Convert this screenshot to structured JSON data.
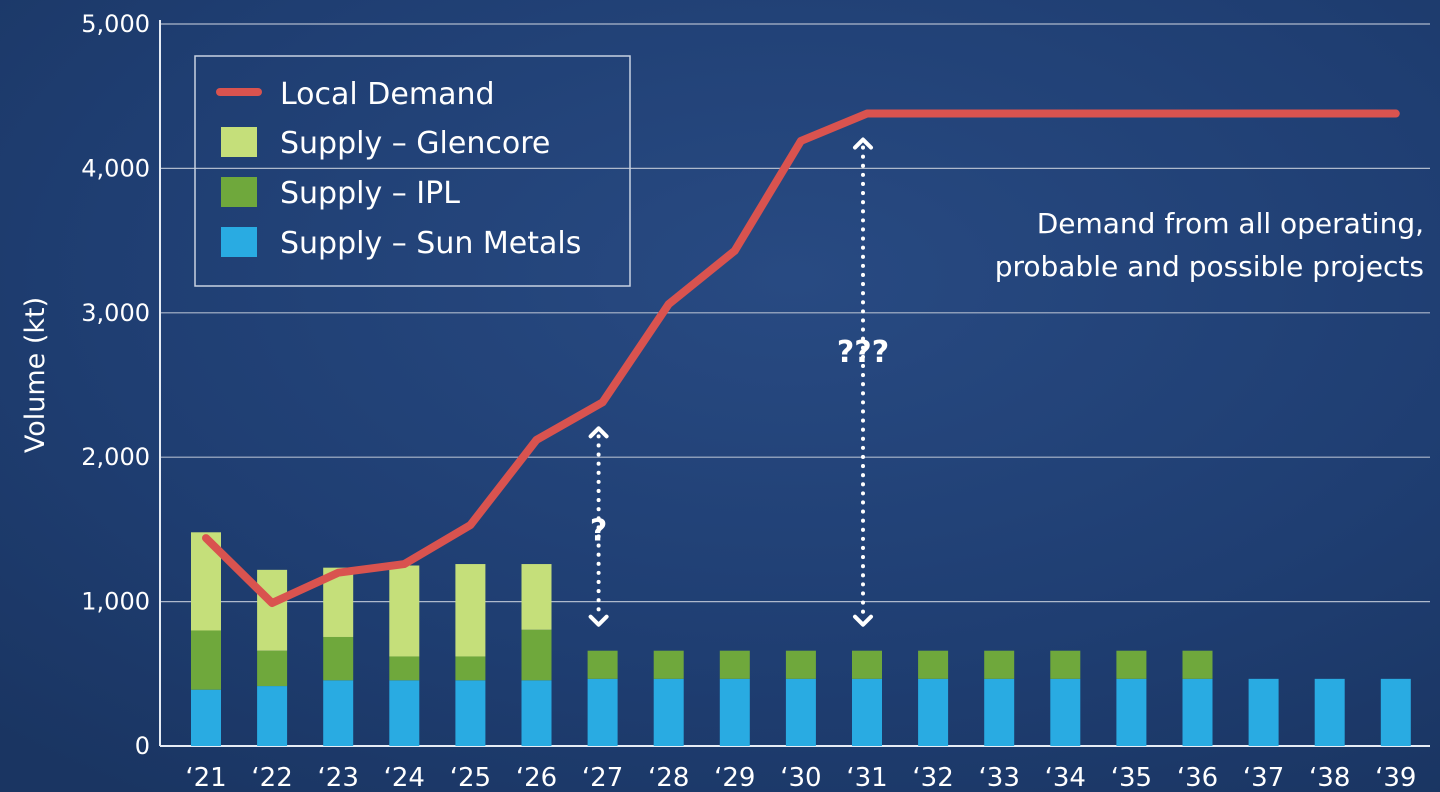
{
  "chart_data": {
    "type": "bar",
    "ylabel": "Volume (kt)",
    "ylim": [
      0,
      5000
    ],
    "y_ticks": [
      "0",
      "1,000",
      "2,000",
      "3,000",
      "4,000",
      "5,000"
    ],
    "y_tick_values": [
      0,
      1000,
      2000,
      3000,
      4000,
      5000
    ],
    "categories": [
      "‘21",
      "‘22",
      "‘23",
      "‘24",
      "‘25",
      "‘26",
      "‘27",
      "‘28",
      "‘29",
      "‘30",
      "‘31",
      "‘32",
      "‘33",
      "‘34",
      "‘35",
      "‘36",
      "‘37",
      "‘38",
      "‘39"
    ],
    "stacking": "stacked",
    "grid": true,
    "legend_position": "top-left",
    "series": [
      {
        "name": "Supply – Sun Metals",
        "kind": "bar",
        "color": "#29abe2",
        "values": [
          390,
          415,
          455,
          455,
          455,
          455,
          465,
          465,
          465,
          465,
          465,
          465,
          465,
          465,
          465,
          465,
          465,
          465,
          465
        ]
      },
      {
        "name": "Supply – IPL",
        "kind": "bar",
        "color": "#6fa83c",
        "values": [
          410,
          245,
          300,
          165,
          165,
          350,
          195,
          195,
          195,
          195,
          195,
          195,
          195,
          195,
          195,
          195,
          0,
          0,
          0
        ]
      },
      {
        "name": "Supply – Glencore",
        "kind": "bar",
        "color": "#c5df7a",
        "values": [
          680,
          560,
          480,
          630,
          640,
          455,
          0,
          0,
          0,
          0,
          0,
          0,
          0,
          0,
          0,
          0,
          0,
          0,
          0
        ]
      },
      {
        "name": "Local Demand",
        "kind": "line",
        "color": "#d9534f",
        "values": [
          1440,
          990,
          1200,
          1260,
          1530,
          2120,
          2380,
          3060,
          3430,
          4190,
          4380,
          4380,
          4380,
          4380,
          4380,
          4380,
          4380,
          4380,
          4380
        ]
      }
    ],
    "legend": [
      "Local Demand",
      "Supply – Glencore",
      "Supply – IPL",
      "Supply – Sun Metals"
    ],
    "annotations": {
      "note_line1": "Demand from all operating,",
      "note_line2": "probable and possible projects",
      "gap_a": {
        "label": "?",
        "category_index": 6
      },
      "gap_b": {
        "label": "???",
        "category_index": 10
      }
    }
  }
}
